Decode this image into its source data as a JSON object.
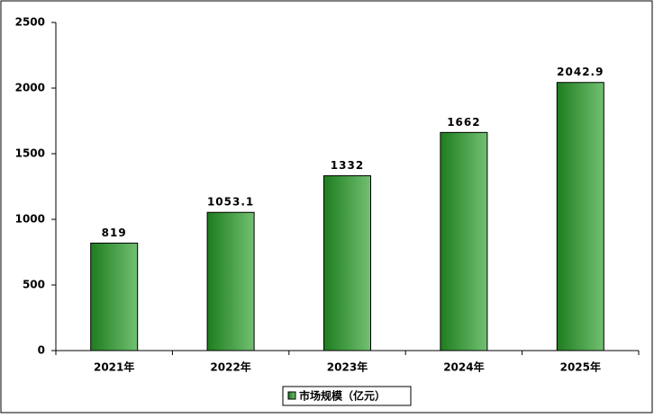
{
  "chart_data": {
    "type": "bar",
    "categories": [
      "2021年",
      "2022年",
      "2023年",
      "2024年",
      "2025年"
    ],
    "series": [
      {
        "name": "市场规模（亿元）",
        "color": "#1e7d1e",
        "values": [
          819,
          1053.1,
          1332,
          1662,
          2042.9
        ]
      }
    ],
    "ylim": [
      0,
      2500
    ],
    "yticks": [
      0,
      500,
      1000,
      1500,
      2000,
      2500
    ],
    "grid": false,
    "legend": "bottom"
  }
}
